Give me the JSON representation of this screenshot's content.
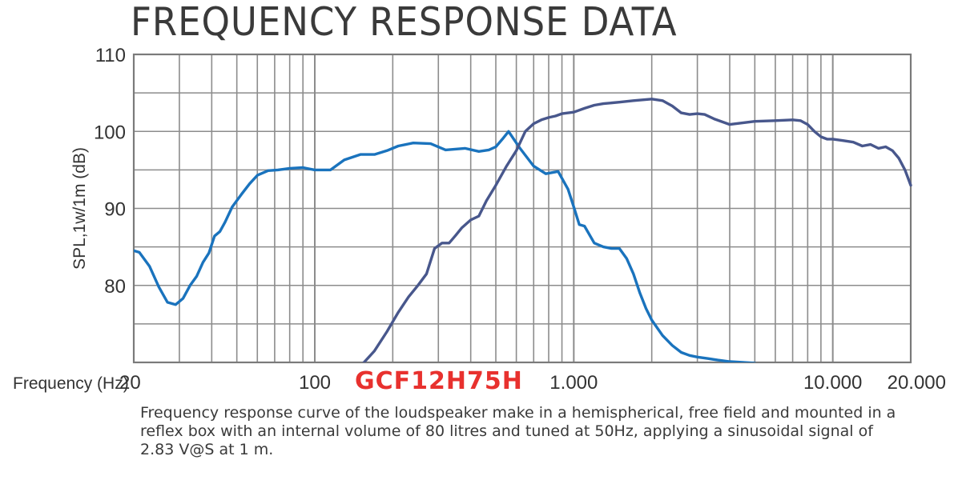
{
  "title": "FREQUENCY RESPONSE DATA",
  "model": "GCF12H75H",
  "caption": "Frequency response curve of the loudspeaker make in a hemispherical, free field and mounted in a reflex box with an internal volume of 80 litres and tuned at 50Hz, applying a sinusoidal signal of 2.83 V@S at 1 m.",
  "chart_data": {
    "type": "line",
    "title": "FREQUENCY RESPONSE DATA",
    "xlabel": "Frequency (Hz)",
    "ylabel": "SPL,1w/1m (dB)",
    "xscale": "log",
    "xlim": [
      20,
      20000
    ],
    "ylim": [
      70,
      110
    ],
    "grid": true,
    "x_ticks": [
      {
        "value": 20,
        "label": "20"
      },
      {
        "value": 100,
        "label": "100"
      },
      {
        "value": 1000,
        "label": "1.000"
      },
      {
        "value": 10000,
        "label": "10.000"
      },
      {
        "value": 20000,
        "label": "20.000"
      }
    ],
    "y_ticks": [
      {
        "value": 110,
        "label": "110"
      },
      {
        "value": 100,
        "label": "100"
      },
      {
        "value": 90,
        "label": "90"
      },
      {
        "value": 80,
        "label": "80"
      }
    ],
    "series": [
      {
        "color": "#1a73bd",
        "x": [
          20,
          21,
          23,
          25,
          27,
          29,
          31,
          33,
          35,
          37,
          39,
          41,
          43,
          45,
          48,
          52,
          56,
          60,
          66,
          72,
          80,
          90,
          100,
          115,
          130,
          150,
          170,
          190,
          210,
          240,
          280,
          320,
          380,
          430,
          470,
          500,
          530,
          560,
          620,
          700,
          780,
          870,
          950,
          1000,
          1050,
          1100,
          1200,
          1300,
          1400,
          1500,
          1600,
          1700,
          1800,
          1900,
          2000,
          2200,
          2400,
          2600,
          2800,
          3000,
          3300,
          3600,
          4000,
          4500,
          5000
        ],
        "y": [
          84.5,
          84.3,
          82.5,
          79.8,
          77.8,
          77.5,
          78.3,
          80.0,
          81.2,
          83.0,
          84.2,
          86.4,
          87.0,
          88.2,
          90.2,
          91.8,
          93.2,
          94.3,
          94.9,
          95.0,
          95.2,
          95.3,
          95.0,
          95.0,
          96.3,
          97.0,
          97.0,
          97.5,
          98.1,
          98.5,
          98.4,
          97.6,
          97.8,
          97.4,
          97.6,
          98.0,
          99.0,
          100.0,
          97.8,
          95.5,
          94.5,
          94.8,
          92.5,
          90.2,
          87.9,
          87.7,
          85.5,
          85.0,
          84.8,
          84.8,
          83.5,
          81.5,
          79.0,
          77.0,
          75.5,
          73.5,
          72.2,
          71.3,
          70.9,
          70.7,
          70.5,
          70.3,
          70.1,
          70.0,
          69.9
        ],
        "series_note": ""
      },
      {
        "color": "#48578c",
        "x": [
          150,
          170,
          190,
          210,
          230,
          250,
          270,
          290,
          310,
          330,
          350,
          370,
          400,
          430,
          460,
          500,
          550,
          600,
          650,
          700,
          750,
          800,
          850,
          900,
          1000,
          1100,
          1200,
          1300,
          1500,
          1700,
          2000,
          2200,
          2400,
          2600,
          2800,
          3000,
          3200,
          3500,
          4000,
          5000,
          6000,
          7000,
          7500,
          8000,
          8500,
          9000,
          9500,
          10000,
          11000,
          12000,
          13000,
          14000,
          15000,
          16000,
          17000,
          18000,
          19000,
          20000
        ],
        "y": [
          69.0,
          71.5,
          74.0,
          76.5,
          78.5,
          80.0,
          81.5,
          84.8,
          85.5,
          85.5,
          86.5,
          87.5,
          88.5,
          89.0,
          91.0,
          93.0,
          95.5,
          97.5,
          100.0,
          101.0,
          101.5,
          101.8,
          102.0,
          102.3,
          102.5,
          103.0,
          103.4,
          103.6,
          103.8,
          104.0,
          104.2,
          104.0,
          103.3,
          102.4,
          102.2,
          102.3,
          102.2,
          101.6,
          100.9,
          101.3,
          101.4,
          101.5,
          101.4,
          100.9,
          100.0,
          99.3,
          99.0,
          99.0,
          98.8,
          98.6,
          98.1,
          98.3,
          97.8,
          98.0,
          97.5,
          96.5,
          95.0,
          93.0
        ],
        "series_note": ""
      }
    ]
  }
}
